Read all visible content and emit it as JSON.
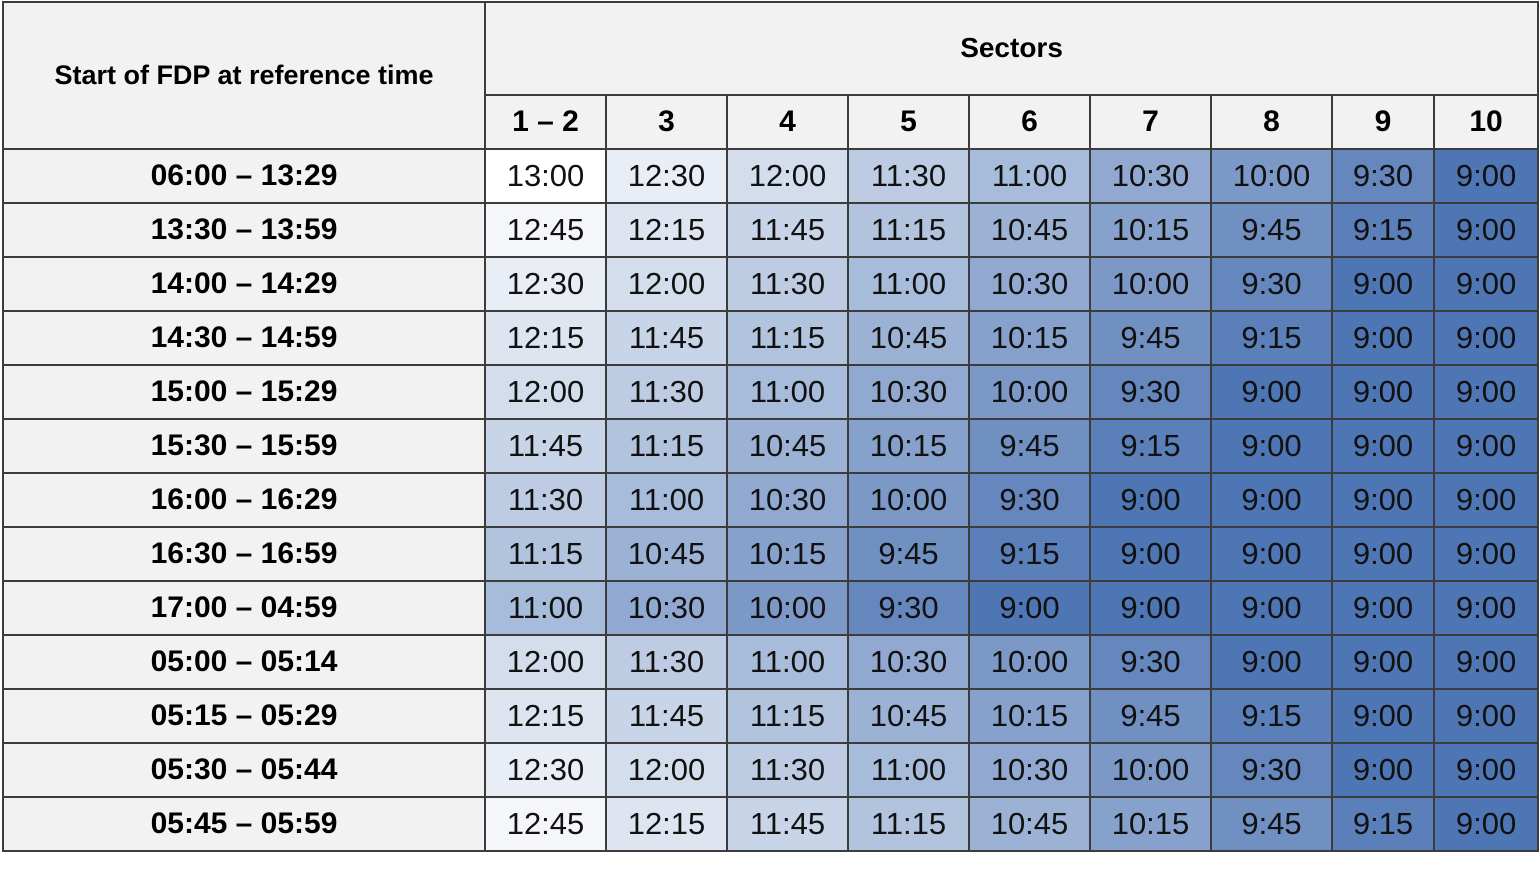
{
  "table": {
    "corner_header": "Start of FDP at reference time",
    "group_header": "Sectors",
    "columns": [
      "1 – 2",
      "3",
      "4",
      "5",
      "6",
      "7",
      "8",
      "9",
      "10"
    ],
    "rows": [
      {
        "label": "06:00 – 13:29",
        "values": [
          "13:00",
          "12:30",
          "12:00",
          "11:30",
          "11:00",
          "10:30",
          "10:00",
          "9:30",
          "9:00"
        ]
      },
      {
        "label": "13:30 – 13:59",
        "values": [
          "12:45",
          "12:15",
          "11:45",
          "11:15",
          "10:45",
          "10:15",
          "9:45",
          "9:15",
          "9:00"
        ]
      },
      {
        "label": "14:00 – 14:29",
        "values": [
          "12:30",
          "12:00",
          "11:30",
          "11:00",
          "10:30",
          "10:00",
          "9:30",
          "9:00",
          "9:00"
        ]
      },
      {
        "label": "14:30 – 14:59",
        "values": [
          "12:15",
          "11:45",
          "11:15",
          "10:45",
          "10:15",
          "9:45",
          "9:15",
          "9:00",
          "9:00"
        ]
      },
      {
        "label": "15:00 – 15:29",
        "values": [
          "12:00",
          "11:30",
          "11:00",
          "10:30",
          "10:00",
          "9:30",
          "9:00",
          "9:00",
          "9:00"
        ]
      },
      {
        "label": "15:30 – 15:59",
        "values": [
          "11:45",
          "11:15",
          "10:45",
          "10:15",
          "9:45",
          "9:15",
          "9:00",
          "9:00",
          "9:00"
        ]
      },
      {
        "label": "16:00 – 16:29",
        "values": [
          "11:30",
          "11:00",
          "10:30",
          "10:00",
          "9:30",
          "9:00",
          "9:00",
          "9:00",
          "9:00"
        ]
      },
      {
        "label": "16:30 – 16:59",
        "values": [
          "11:15",
          "10:45",
          "10:15",
          "9:45",
          "9:15",
          "9:00",
          "9:00",
          "9:00",
          "9:00"
        ]
      },
      {
        "label": "17:00 – 04:59",
        "values": [
          "11:00",
          "10:30",
          "10:00",
          "9:30",
          "9:00",
          "9:00",
          "9:00",
          "9:00",
          "9:00"
        ]
      },
      {
        "label": "05:00 – 05:14",
        "values": [
          "12:00",
          "11:30",
          "11:00",
          "10:30",
          "10:00",
          "9:30",
          "9:00",
          "9:00",
          "9:00"
        ]
      },
      {
        "label": "05:15 – 05:29",
        "values": [
          "12:15",
          "11:45",
          "11:15",
          "10:45",
          "10:15",
          "9:45",
          "9:15",
          "9:00",
          "9:00"
        ]
      },
      {
        "label": "05:30 – 05:44",
        "values": [
          "12:30",
          "12:00",
          "11:30",
          "11:00",
          "10:30",
          "10:00",
          "9:30",
          "9:00",
          "9:00"
        ]
      },
      {
        "label": "05:45 – 05:59",
        "values": [
          "12:45",
          "12:15",
          "11:45",
          "11:15",
          "10:45",
          "10:15",
          "9:45",
          "9:15",
          "9:00"
        ]
      }
    ]
  },
  "colors": {
    "heat_low": "#ffffff",
    "heat_high": "#4f76b4",
    "header_fill": "#f2f2f2",
    "border": "#3c3c3c"
  }
}
